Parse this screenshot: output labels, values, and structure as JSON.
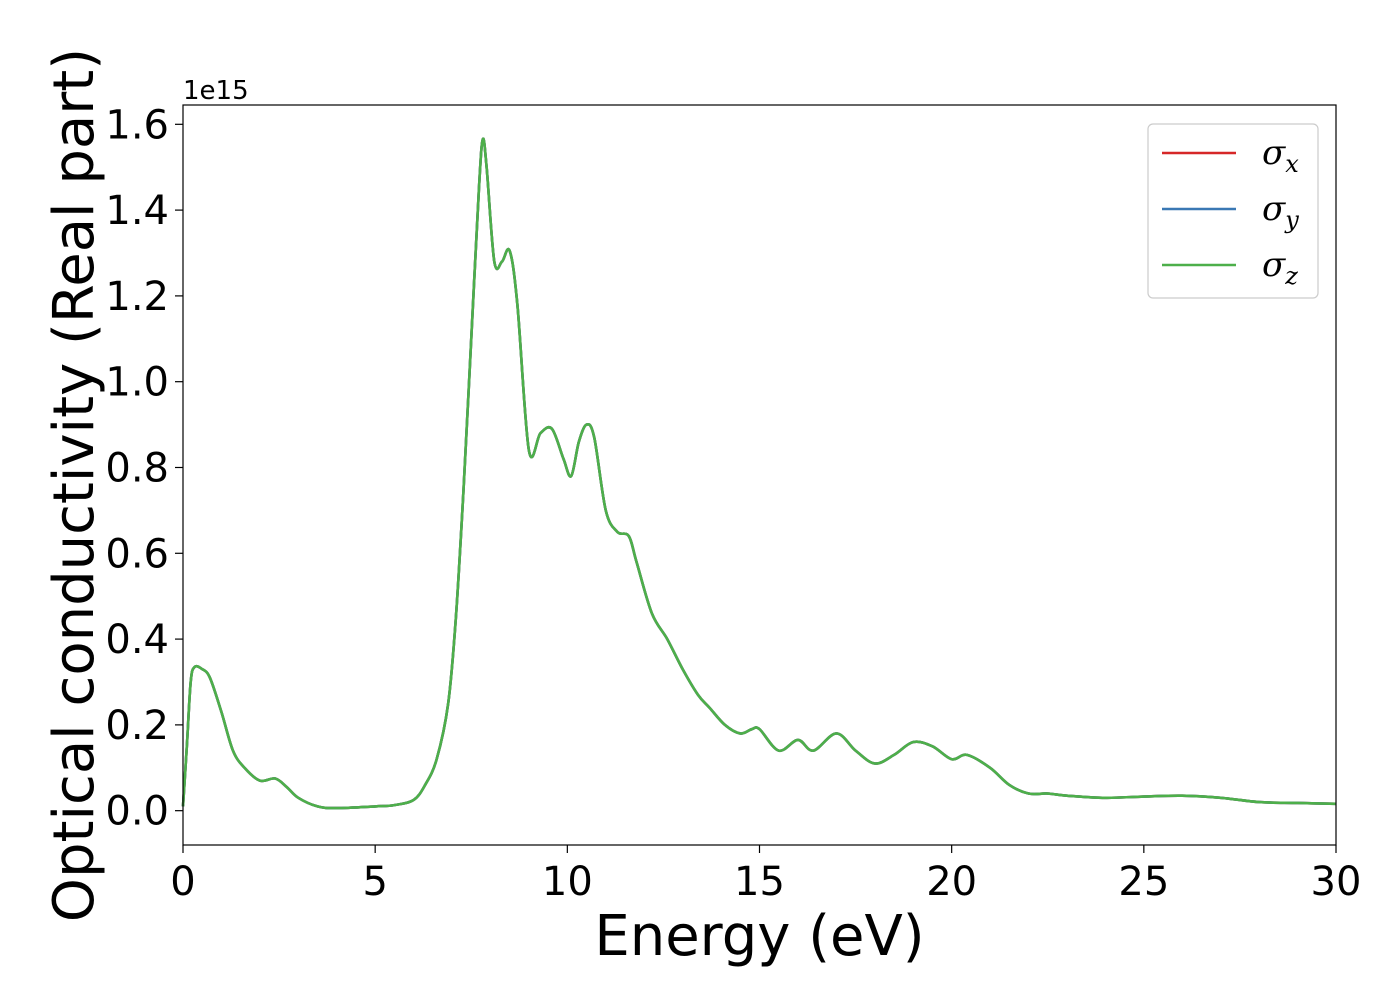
{
  "chart_data": {
    "type": "line",
    "xlabel": "Energy (eV)",
    "ylabel": "Optical conductivity (Real part)",
    "y_offset_label": "1e15",
    "y_scale": 1000000000000000.0,
    "xlim": [
      0,
      30
    ],
    "ylim": [
      -0.08,
      1.645
    ],
    "x_ticks": [
      0,
      5,
      10,
      15,
      20,
      25,
      30
    ],
    "y_ticks": [
      0.0,
      0.2,
      0.4,
      0.6,
      0.8,
      1.0,
      1.2,
      1.4,
      1.6
    ],
    "y_tick_labels": [
      "0.0",
      "0.2",
      "0.4",
      "0.6",
      "0.8",
      "1.0",
      "1.2",
      "1.4",
      "1.6"
    ],
    "grid": false,
    "legend_position": "top-right",
    "x": [
      0,
      0.1,
      0.2,
      0.3,
      0.5,
      0.7,
      1.0,
      1.3,
      1.6,
      2.0,
      2.4,
      2.7,
      3.0,
      3.5,
      4.0,
      5.0,
      5.5,
      6.0,
      6.3,
      6.6,
      6.9,
      7.1,
      7.3,
      7.5,
      7.7,
      7.8,
      7.9,
      8.1,
      8.3,
      8.5,
      8.7,
      9.0,
      9.3,
      9.6,
      9.9,
      10.1,
      10.3,
      10.5,
      10.7,
      11.0,
      11.3,
      11.6,
      11.8,
      12.2,
      12.6,
      13.0,
      13.4,
      13.7,
      14.1,
      14.5,
      14.8,
      15.0,
      15.5,
      16.0,
      16.4,
      17.0,
      17.5,
      18.0,
      18.5,
      19.0,
      19.5,
      20.0,
      20.4,
      21.0,
      21.5,
      22.0,
      22.5,
      23.0,
      24.0,
      25.0,
      26.0,
      27.0,
      28.0,
      29.0,
      30.0
    ],
    "series": [
      {
        "name": "σx",
        "symbol": "σ",
        "subscript": "x",
        "color": "#d62728",
        "values": [
          0.01,
          0.15,
          0.3,
          0.335,
          0.33,
          0.31,
          0.23,
          0.14,
          0.1,
          0.07,
          0.075,
          0.055,
          0.03,
          0.01,
          0.006,
          0.01,
          0.013,
          0.025,
          0.06,
          0.12,
          0.25,
          0.45,
          0.75,
          1.1,
          1.45,
          1.565,
          1.5,
          1.28,
          1.28,
          1.305,
          1.18,
          0.84,
          0.88,
          0.89,
          0.82,
          0.78,
          0.86,
          0.9,
          0.87,
          0.7,
          0.65,
          0.64,
          0.58,
          0.46,
          0.4,
          0.33,
          0.27,
          0.24,
          0.2,
          0.18,
          0.19,
          0.19,
          0.14,
          0.165,
          0.14,
          0.18,
          0.14,
          0.11,
          0.13,
          0.16,
          0.15,
          0.12,
          0.13,
          0.1,
          0.06,
          0.04,
          0.04,
          0.035,
          0.03,
          0.033,
          0.035,
          0.03,
          0.02,
          0.018,
          0.016
        ]
      },
      {
        "name": "σy",
        "symbol": "σ",
        "subscript": "y",
        "color": "#3a78b4",
        "values": [
          0.01,
          0.15,
          0.3,
          0.335,
          0.33,
          0.31,
          0.23,
          0.14,
          0.1,
          0.07,
          0.075,
          0.055,
          0.03,
          0.01,
          0.006,
          0.01,
          0.013,
          0.025,
          0.06,
          0.12,
          0.25,
          0.45,
          0.75,
          1.1,
          1.45,
          1.565,
          1.5,
          1.28,
          1.28,
          1.305,
          1.18,
          0.84,
          0.88,
          0.89,
          0.82,
          0.78,
          0.86,
          0.9,
          0.87,
          0.7,
          0.65,
          0.64,
          0.58,
          0.46,
          0.4,
          0.33,
          0.27,
          0.24,
          0.2,
          0.18,
          0.19,
          0.19,
          0.14,
          0.165,
          0.14,
          0.18,
          0.14,
          0.11,
          0.13,
          0.16,
          0.15,
          0.12,
          0.13,
          0.1,
          0.06,
          0.04,
          0.04,
          0.035,
          0.03,
          0.033,
          0.035,
          0.03,
          0.02,
          0.018,
          0.016
        ]
      },
      {
        "name": "σz",
        "symbol": "σ",
        "subscript": "z",
        "color": "#4daf4a",
        "values": [
          0.01,
          0.15,
          0.3,
          0.335,
          0.33,
          0.31,
          0.23,
          0.14,
          0.1,
          0.07,
          0.075,
          0.055,
          0.03,
          0.01,
          0.006,
          0.01,
          0.013,
          0.025,
          0.06,
          0.12,
          0.25,
          0.45,
          0.75,
          1.1,
          1.45,
          1.565,
          1.5,
          1.28,
          1.28,
          1.305,
          1.18,
          0.84,
          0.88,
          0.89,
          0.82,
          0.78,
          0.86,
          0.9,
          0.87,
          0.7,
          0.65,
          0.64,
          0.58,
          0.46,
          0.4,
          0.33,
          0.27,
          0.24,
          0.2,
          0.18,
          0.19,
          0.19,
          0.14,
          0.165,
          0.14,
          0.18,
          0.14,
          0.11,
          0.13,
          0.16,
          0.15,
          0.12,
          0.13,
          0.1,
          0.06,
          0.04,
          0.04,
          0.035,
          0.03,
          0.033,
          0.035,
          0.03,
          0.02,
          0.018,
          0.016
        ]
      }
    ]
  }
}
